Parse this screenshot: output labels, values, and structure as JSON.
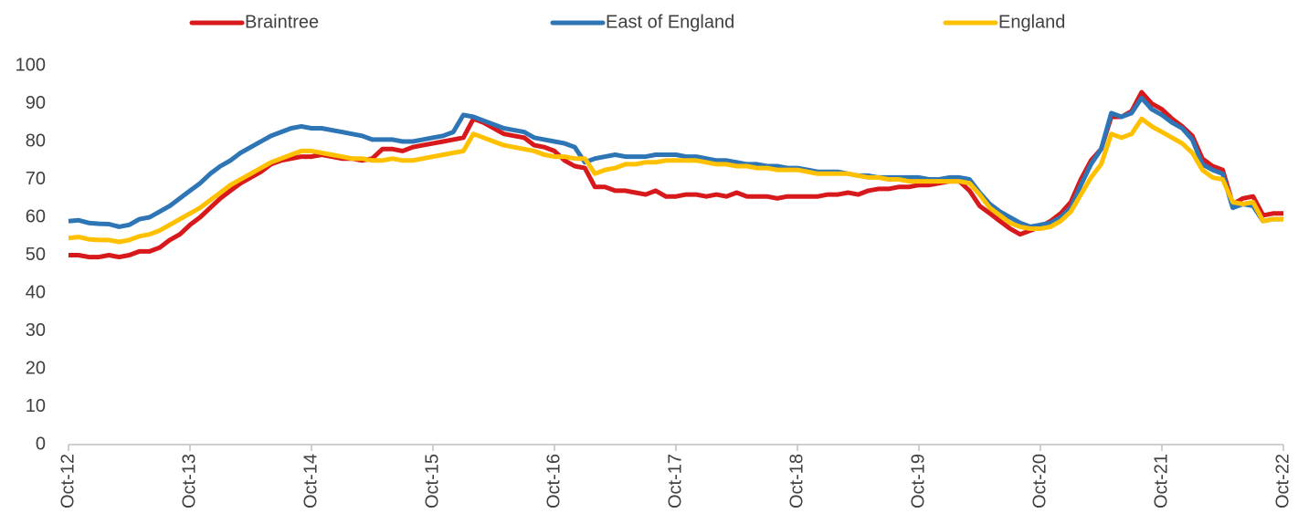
{
  "chart_data": {
    "type": "line",
    "categories": [
      "Oct-12",
      null,
      null,
      null,
      null,
      null,
      null,
      null,
      null,
      null,
      null,
      null,
      "Oct-13",
      null,
      null,
      null,
      null,
      null,
      null,
      null,
      null,
      null,
      null,
      null,
      "Oct-14",
      null,
      null,
      null,
      null,
      null,
      null,
      null,
      null,
      null,
      null,
      null,
      "Oct-15",
      null,
      null,
      null,
      null,
      null,
      null,
      null,
      null,
      null,
      null,
      null,
      "Oct-16",
      null,
      null,
      null,
      null,
      null,
      null,
      null,
      null,
      null,
      null,
      null,
      "Oct-17",
      null,
      null,
      null,
      null,
      null,
      null,
      null,
      null,
      null,
      null,
      null,
      "Oct-18",
      null,
      null,
      null,
      null,
      null,
      null,
      null,
      null,
      null,
      null,
      null,
      "Oct-19",
      null,
      null,
      null,
      null,
      null,
      null,
      null,
      null,
      null,
      null,
      null,
      "Oct-20",
      null,
      null,
      null,
      null,
      null,
      null,
      null,
      null,
      null,
      null,
      null,
      "Oct-21",
      null,
      null,
      null,
      null,
      null,
      null,
      null,
      null,
      null,
      null,
      null,
      "Oct-22"
    ],
    "series": [
      {
        "name": "Braintree",
        "color": "#d7191c",
        "values": [
          50,
          50,
          49.5,
          49.5,
          50,
          49.5,
          50,
          51,
          51,
          52,
          54,
          55.5,
          58,
          60,
          62.5,
          65,
          67,
          69,
          70.5,
          72,
          74,
          75,
          75.5,
          76,
          76,
          76.5,
          76,
          75.5,
          75.5,
          75,
          75.5,
          78,
          78,
          77.5,
          78.5,
          79,
          79.5,
          80,
          80.5,
          81,
          86,
          85,
          83.5,
          82,
          81.5,
          81,
          79,
          78.5,
          77.5,
          75,
          73.5,
          73,
          68,
          68,
          67,
          67,
          66.5,
          66,
          67,
          65.5,
          65.5,
          66,
          66,
          65.5,
          66,
          65.5,
          66.5,
          65.5,
          65.5,
          65.5,
          65,
          65.5,
          65.5,
          65.5,
          65.5,
          66,
          66,
          66.5,
          66,
          67,
          67.5,
          67.5,
          68,
          68,
          68.5,
          68.5,
          69,
          69.5,
          69.5,
          67,
          63,
          61,
          59,
          57,
          55.5,
          56.5,
          57.5,
          59,
          61,
          64,
          70,
          75,
          78,
          86.5,
          86.5,
          88,
          93,
          90,
          88.5,
          86,
          84,
          81.5,
          75.5,
          73.5,
          72.5,
          63.5,
          65,
          65.5,
          60.5,
          61,
          61
        ]
      },
      {
        "name": "East of England",
        "color": "#2e75b6",
        "values": [
          59,
          59.2,
          58.5,
          58.3,
          58.2,
          57.5,
          58,
          59.5,
          60,
          61.5,
          63,
          65,
          67,
          69,
          71.5,
          73.5,
          75,
          77,
          78.5,
          80,
          81.5,
          82.5,
          83.5,
          84,
          83.5,
          83.5,
          83,
          82.5,
          82,
          81.5,
          80.5,
          80.5,
          80.5,
          80,
          80,
          80.5,
          81,
          81.5,
          82.5,
          87,
          86.5,
          85.5,
          84.5,
          83.5,
          83,
          82.5,
          81,
          80.5,
          80,
          79.5,
          78.5,
          74.5,
          75.5,
          76,
          76.5,
          76,
          76,
          76,
          76.5,
          76.5,
          76.5,
          76,
          76,
          75.5,
          75,
          75,
          74.5,
          74,
          74,
          73.5,
          73.5,
          73,
          73,
          72.5,
          72,
          72,
          72,
          71.5,
          71,
          71,
          70.5,
          70.5,
          70.5,
          70.5,
          70.5,
          70,
          70,
          70.5,
          70.5,
          70,
          66.5,
          63.5,
          61.5,
          60,
          58.5,
          57.5,
          58,
          58.5,
          60,
          62.5,
          68.5,
          74,
          78,
          87.5,
          86.5,
          87.5,
          91.5,
          88.5,
          87,
          85,
          83.5,
          80.5,
          74,
          72.5,
          71.5,
          62.5,
          63.5,
          63,
          59,
          59.5,
          59.5
        ]
      },
      {
        "name": "England",
        "color": "#ffc000",
        "values": [
          54.5,
          54.8,
          54.2,
          54,
          54,
          53.5,
          54,
          55,
          55.5,
          56.5,
          58,
          59.5,
          61,
          62.5,
          64.5,
          66.5,
          68.5,
          70,
          71.5,
          73,
          74.5,
          75.5,
          76.5,
          77.5,
          77.5,
          77,
          76.5,
          76,
          75.5,
          75.5,
          75,
          75,
          75.5,
          75,
          75,
          75.5,
          76,
          76.5,
          77,
          77.5,
          82,
          81,
          80,
          79,
          78.5,
          78,
          77.5,
          76.5,
          76,
          76,
          75.5,
          75.5,
          71.5,
          72.5,
          73,
          74,
          74,
          74.5,
          74.5,
          75,
          75,
          75,
          75,
          74.5,
          74,
          74,
          73.5,
          73.5,
          73,
          73,
          72.5,
          72.5,
          72.5,
          72,
          71.5,
          71.5,
          71.5,
          71.5,
          71,
          70.5,
          70.5,
          70,
          70,
          69.5,
          69.5,
          69.5,
          69.5,
          69.5,
          69.5,
          69,
          66,
          62.5,
          60.5,
          58.5,
          57.5,
          57,
          57,
          57.5,
          59,
          61.5,
          66,
          70.5,
          74,
          82,
          81,
          82,
          86,
          84,
          82.5,
          81,
          79.5,
          77,
          72.5,
          70.5,
          70,
          64,
          63.5,
          64,
          59,
          59.5,
          59.5
        ]
      }
    ],
    "ylim": [
      0,
      100
    ],
    "yticks": [
      0,
      10,
      20,
      30,
      40,
      50,
      60,
      70,
      80,
      90,
      100
    ],
    "grid": false,
    "legend": "top"
  }
}
